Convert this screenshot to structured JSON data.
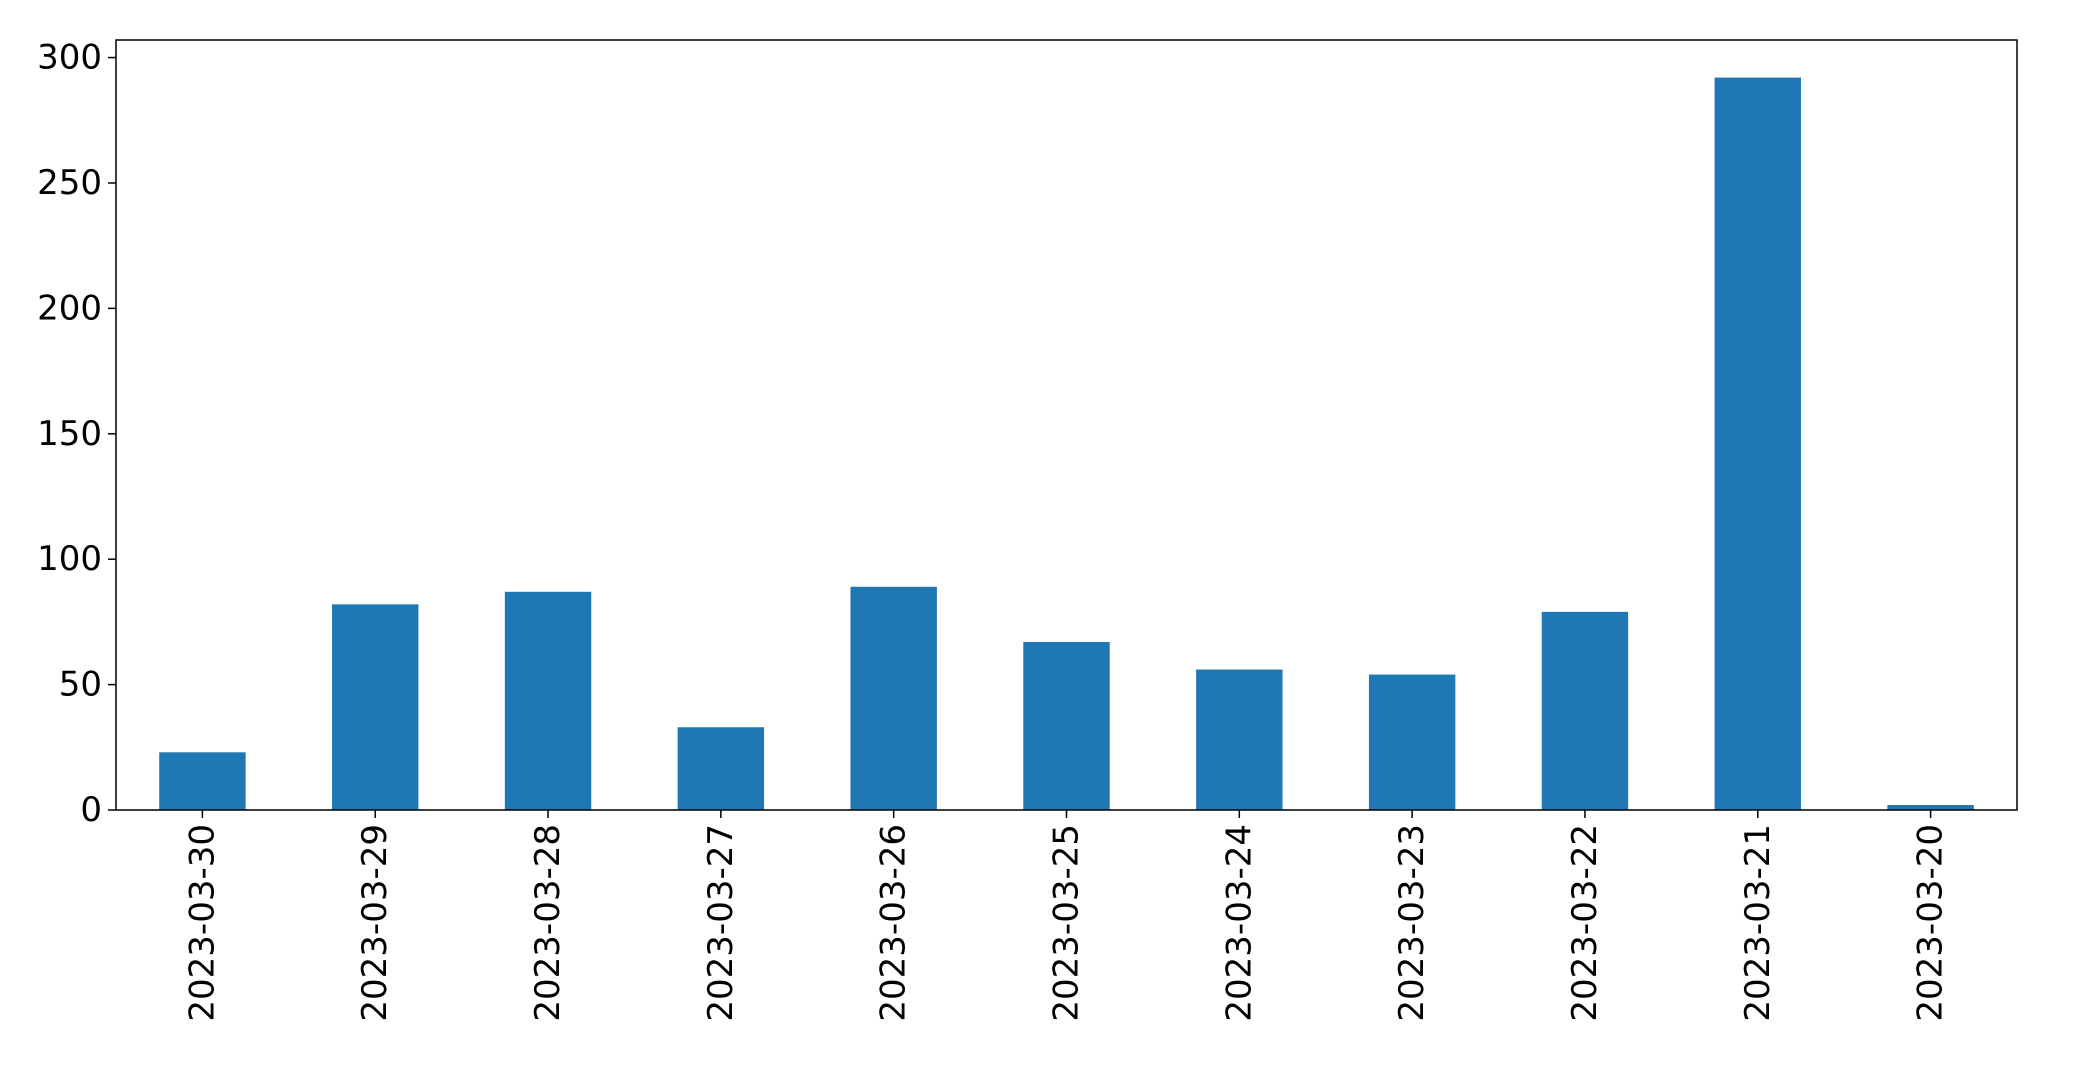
{
  "chart_data": {
    "type": "bar",
    "title": "",
    "xlabel": "",
    "ylabel": "",
    "categories": [
      "2023-03-30",
      "2023-03-29",
      "2023-03-28",
      "2023-03-27",
      "2023-03-26",
      "2023-03-25",
      "2023-03-24",
      "2023-03-23",
      "2023-03-22",
      "2023-03-21",
      "2023-03-20"
    ],
    "values": [
      23,
      82,
      87,
      33,
      89,
      67,
      56,
      54,
      79,
      292,
      2
    ],
    "ylim": [
      0,
      307
    ],
    "yticks": [
      0,
      50,
      100,
      150,
      200,
      250,
      300
    ],
    "bar_color": "#1f77b4",
    "grid": false,
    "legend": "none"
  }
}
